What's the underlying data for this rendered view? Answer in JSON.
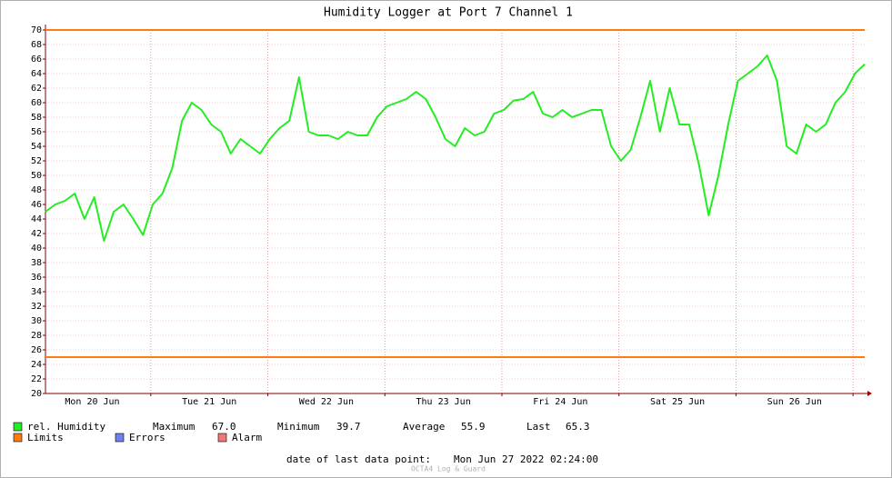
{
  "chart_data": {
    "type": "line",
    "title": "Humidity Logger at Port 7 Channel 1",
    "x": [
      "2022-06-20 02:24",
      "2022-06-20 04:24",
      "2022-06-20 06:24",
      "2022-06-20 08:24",
      "2022-06-20 10:24",
      "2022-06-20 12:24",
      "2022-06-20 14:24",
      "2022-06-20 16:24",
      "2022-06-20 18:24",
      "2022-06-20 20:24",
      "2022-06-20 22:24",
      "2022-06-21 00:24",
      "2022-06-21 02:24",
      "2022-06-21 04:24",
      "2022-06-21 06:24",
      "2022-06-21 08:24",
      "2022-06-21 10:24",
      "2022-06-21 12:24",
      "2022-06-21 14:24",
      "2022-06-21 16:24",
      "2022-06-21 18:24",
      "2022-06-21 20:24",
      "2022-06-21 22:24",
      "2022-06-22 00:24",
      "2022-06-22 02:24",
      "2022-06-22 04:24",
      "2022-06-22 06:24",
      "2022-06-22 08:24",
      "2022-06-22 10:24",
      "2022-06-22 12:24",
      "2022-06-22 14:24",
      "2022-06-22 16:24",
      "2022-06-22 18:24",
      "2022-06-22 20:24",
      "2022-06-22 22:24",
      "2022-06-23 00:24",
      "2022-06-23 02:24",
      "2022-06-23 04:24",
      "2022-06-23 06:24",
      "2022-06-23 08:24",
      "2022-06-23 10:24",
      "2022-06-23 12:24",
      "2022-06-23 14:24",
      "2022-06-23 16:24",
      "2022-06-23 18:24",
      "2022-06-23 20:24",
      "2022-06-23 22:24",
      "2022-06-24 00:24",
      "2022-06-24 02:24",
      "2022-06-24 04:24",
      "2022-06-24 06:24",
      "2022-06-24 08:24",
      "2022-06-24 10:24",
      "2022-06-24 12:24",
      "2022-06-24 14:24",
      "2022-06-24 16:24",
      "2022-06-24 18:24",
      "2022-06-24 20:24",
      "2022-06-24 22:24",
      "2022-06-25 00:24",
      "2022-06-25 02:24",
      "2022-06-25 04:24",
      "2022-06-25 06:24",
      "2022-06-25 08:24",
      "2022-06-25 10:24",
      "2022-06-25 12:24",
      "2022-06-25 14:24",
      "2022-06-25 16:24",
      "2022-06-25 18:24",
      "2022-06-25 20:24",
      "2022-06-25 22:24",
      "2022-06-26 00:24",
      "2022-06-26 02:24",
      "2022-06-26 04:24",
      "2022-06-26 06:24",
      "2022-06-26 08:24",
      "2022-06-26 10:24",
      "2022-06-26 12:24",
      "2022-06-26 14:24",
      "2022-06-26 16:24",
      "2022-06-26 18:24",
      "2022-06-26 20:24",
      "2022-06-26 22:24",
      "2022-06-27 00:24",
      "2022-06-27 02:24"
    ],
    "series": [
      {
        "name": "rel. Humidity",
        "color": "#22ee22",
        "values": [
          45,
          46,
          46.5,
          47.5,
          44,
          47,
          41,
          45,
          46,
          44,
          41.8,
          46,
          47.5,
          51,
          57.5,
          60,
          59,
          57,
          56,
          53,
          55,
          54,
          53,
          55,
          56.5,
          57.5,
          63.5,
          56,
          55.5,
          55.5,
          55,
          56,
          55.5,
          55.5,
          58,
          59.5,
          60,
          60.5,
          61.5,
          60.5,
          58,
          55,
          54,
          56.5,
          55.5,
          56,
          58.5,
          59,
          60.3,
          60.5,
          61.5,
          58.5,
          58,
          59,
          58,
          58.5,
          59,
          59,
          54,
          52,
          53.5,
          58,
          63,
          56,
          62,
          57,
          57,
          51.5,
          44.5,
          50,
          57,
          63,
          64,
          65,
          66.5,
          63,
          54,
          53,
          57,
          56,
          57,
          60,
          61.5,
          64,
          65.3
        ]
      }
    ],
    "limits": {
      "name": "Limits",
      "color": "#ff7b10",
      "values": [
        70,
        25
      ]
    },
    "legend_extra": [
      {
        "name": "Errors",
        "color": "#7080f0"
      },
      {
        "name": "Alarm",
        "color": "#f07878"
      }
    ],
    "stats": [
      {
        "name": "Maximum",
        "value": 67.0,
        "label": "67.0"
      },
      {
        "name": "Minimum",
        "value": 39.7,
        "label": "39.7"
      },
      {
        "name": "Average",
        "value": 55.9,
        "label": "55.9"
      },
      {
        "name": "Last",
        "value": 65.3,
        "label": "65.3"
      }
    ],
    "footer_label": "date of last data point:",
    "footer_value": "Mon Jun 27 2022 02:24:00",
    "watermark": "OCTA4 Log & Guard",
    "xlim": [
      "2022-06-20 02:24",
      "2022-06-27 02:24"
    ],
    "xticks": [
      {
        "value": "2022-06-20 12:00",
        "label": "Mon 20 Jun"
      },
      {
        "value": "2022-06-21 12:00",
        "label": "Tue 21 Jun"
      },
      {
        "value": "2022-06-22 12:00",
        "label": "Wed 22 Jun"
      },
      {
        "value": "2022-06-23 12:00",
        "label": "Thu 23 Jun"
      },
      {
        "value": "2022-06-24 12:00",
        "label": "Fri 24 Jun"
      },
      {
        "value": "2022-06-25 12:00",
        "label": "Sat 25 Jun"
      },
      {
        "value": "2022-06-26 12:00",
        "label": "Sun 26 Jun"
      }
    ],
    "x_major_grid": [
      "2022-06-21 00:00",
      "2022-06-22 00:00",
      "2022-06-23 00:00",
      "2022-06-24 00:00",
      "2022-06-25 00:00",
      "2022-06-26 00:00",
      "2022-06-27 00:00"
    ],
    "ylim": [
      20,
      70
    ],
    "yticks": [
      20,
      22,
      24,
      26,
      28,
      30,
      32,
      34,
      36,
      38,
      40,
      42,
      44,
      46,
      48,
      50,
      52,
      54,
      56,
      58,
      60,
      62,
      64,
      66,
      68,
      70
    ],
    "grid": true
  }
}
